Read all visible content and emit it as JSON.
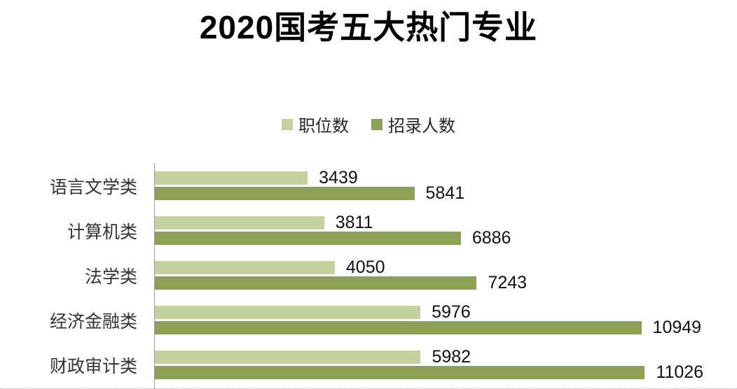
{
  "header": {
    "title_year": "2020",
    "title_rest": "国考五大热门专业"
  },
  "chart_data": {
    "type": "bar",
    "orientation": "horizontal",
    "title": "2020国考五大热门专业",
    "categories": [
      "语言文学类",
      "计算机类",
      "法学类",
      "经济金融类",
      "财政审计类"
    ],
    "series": [
      {
        "name": "职位数",
        "color": "#c4d2a0",
        "values": [
          3439,
          3811,
          4050,
          5976,
          5982
        ]
      },
      {
        "name": "招录人数",
        "color": "#8ca252",
        "values": [
          5841,
          6886,
          7243,
          10949,
          11026
        ]
      }
    ],
    "value_labels": true,
    "xlim": [
      0,
      13100
    ],
    "grid": false,
    "legend_position": "top-center",
    "axis_line_color": "#9d9d9d"
  }
}
